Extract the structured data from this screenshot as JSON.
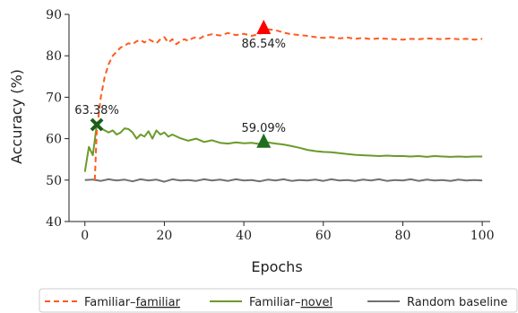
{
  "chart_data": {
    "type": "line",
    "xlabel": "Epochs",
    "ylabel": "Accuracy (%)",
    "xlim": [
      -4,
      102
    ],
    "ylim": [
      40,
      90
    ],
    "xticks": [
      0,
      20,
      40,
      60,
      80,
      100
    ],
    "yticks": [
      40,
      50,
      60,
      70,
      80,
      90
    ],
    "grid": false,
    "legend_position": "bottom",
    "series": [
      {
        "name": "Familiar–familiar",
        "name_prefix": "Familiar–",
        "name_underlined": "familiar",
        "color": "#ff5a1f",
        "style": "dashed",
        "x": [
          2.5,
          3,
          4,
          5,
          6,
          7,
          8,
          9,
          10,
          11,
          12,
          13,
          14,
          15,
          16,
          17,
          18,
          19,
          20,
          21,
          22,
          23,
          24,
          25,
          26,
          27,
          28,
          29,
          30,
          32,
          34,
          36,
          38,
          40,
          42,
          44,
          46,
          48,
          50,
          52,
          54,
          56,
          58,
          60,
          62,
          64,
          66,
          68,
          70,
          72,
          74,
          76,
          78,
          80,
          82,
          84,
          86,
          88,
          90,
          92,
          94,
          96,
          98,
          100
        ],
        "y": [
          50,
          62,
          70,
          75,
          78,
          80,
          81,
          82,
          82.5,
          83,
          82.8,
          83.5,
          83.8,
          83.2,
          84,
          83.5,
          83,
          84,
          84.5,
          83.2,
          84,
          82.8,
          83.5,
          84,
          83.6,
          84.2,
          84.5,
          84.2,
          84.8,
          85.2,
          84.9,
          85.5,
          85.0,
          85.3,
          84.8,
          85.3,
          86.4,
          86.2,
          85.6,
          85.2,
          85.0,
          84.8,
          84.5,
          84.3,
          84.5,
          84.2,
          84.4,
          84.1,
          84.3,
          84.0,
          84.2,
          84.1,
          84.0,
          83.9,
          84.1,
          84.0,
          84.2,
          84.1,
          84.0,
          84.2,
          84.0,
          84.1,
          83.9,
          84.1
        ]
      },
      {
        "name": "Familiar–novel",
        "name_prefix": "Familiar–",
        "name_underlined": "novel",
        "color": "#6b9a2a",
        "style": "solid",
        "x": [
          0,
          1,
          2,
          3,
          4,
          5,
          6,
          7,
          8,
          9,
          10,
          11,
          12,
          13,
          14,
          15,
          16,
          17,
          18,
          19,
          20,
          21,
          22,
          24,
          26,
          28,
          30,
          32,
          34,
          36,
          38,
          40,
          42,
          44,
          46,
          48,
          50,
          52,
          54,
          56,
          58,
          60,
          62,
          64,
          66,
          68,
          70,
          72,
          74,
          76,
          78,
          80,
          82,
          84,
          86,
          88,
          90,
          92,
          94,
          96,
          98,
          100
        ],
        "y": [
          52,
          58,
          56,
          63.38,
          62.5,
          62,
          61.5,
          62,
          61,
          61.5,
          62.5,
          62.3,
          61.5,
          60,
          61,
          60.5,
          61.8,
          60,
          62,
          61,
          61.5,
          60.5,
          61,
          60.1,
          59.5,
          60,
          59.2,
          59.6,
          59.0,
          58.8,
          59.1,
          58.9,
          59.0,
          58.7,
          59.09,
          58.8,
          58.6,
          58.2,
          57.8,
          57.3,
          57.0,
          56.8,
          56.7,
          56.5,
          56.3,
          56.1,
          56.0,
          55.9,
          55.8,
          55.9,
          55.8,
          55.8,
          55.7,
          55.8,
          55.6,
          55.8,
          55.7,
          55.6,
          55.7,
          55.6,
          55.7,
          55.7
        ]
      },
      {
        "name": "Random baseline",
        "color": "#707070",
        "style": "solid",
        "x": [
          0,
          2,
          4,
          6,
          8,
          10,
          12,
          14,
          16,
          18,
          20,
          22,
          24,
          26,
          28,
          30,
          32,
          34,
          36,
          38,
          40,
          42,
          44,
          46,
          48,
          50,
          52,
          54,
          56,
          58,
          60,
          62,
          64,
          66,
          68,
          70,
          72,
          74,
          76,
          78,
          80,
          82,
          84,
          86,
          88,
          90,
          92,
          94,
          96,
          98,
          100
        ],
        "y": [
          50,
          50.1,
          49.8,
          50.2,
          49.9,
          50.1,
          49.7,
          50.2,
          49.9,
          50.1,
          49.6,
          50.2,
          49.9,
          50.0,
          49.8,
          50.2,
          49.9,
          50.1,
          49.8,
          50.2,
          49.9,
          50.0,
          49.7,
          50.1,
          49.9,
          50.2,
          49.8,
          50.0,
          49.9,
          50.1,
          49.8,
          50.2,
          49.9,
          50.0,
          49.8,
          50.1,
          49.9,
          50.2,
          49.8,
          50.0,
          49.9,
          50.2,
          49.8,
          50.1,
          49.9,
          50.0,
          49.8,
          50.1,
          49.9,
          50.0,
          49.9
        ]
      }
    ],
    "markers": [
      {
        "series": "Familiar–familiar",
        "shape": "triangle",
        "color": "#ff0000",
        "x": 45,
        "y": 86.54,
        "label": "86.54%",
        "label_side": "below"
      },
      {
        "series": "Familiar–novel",
        "shape": "x",
        "color": "#1a5e1a",
        "x": 3,
        "y": 63.38,
        "label": "63.38%",
        "label_side": "above"
      },
      {
        "series": "Familiar–novel",
        "shape": "triangle",
        "color": "#1e6e1e",
        "x": 45,
        "y": 59.09,
        "label": "59.09%",
        "label_side": "above"
      }
    ]
  }
}
